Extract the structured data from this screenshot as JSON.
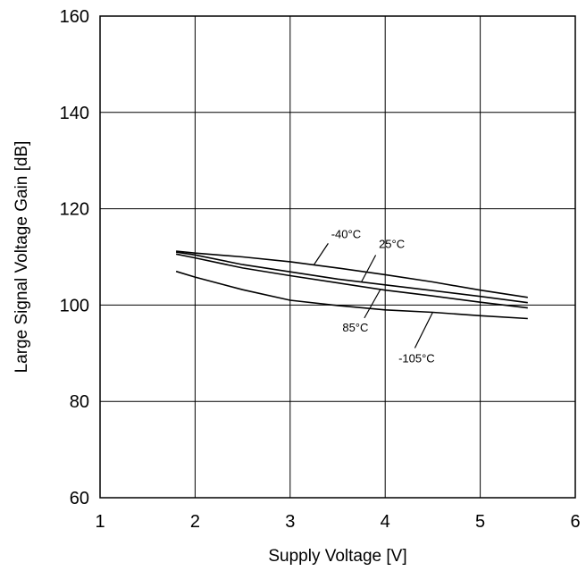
{
  "chart_data": {
    "type": "line",
    "title": "",
    "xlabel": "Supply Voltage [V]",
    "ylabel": "Large Signal Voltage Gain [dB]",
    "xlim": [
      1,
      6
    ],
    "ylim": [
      60,
      160
    ],
    "x_ticks": [
      "1",
      "2",
      "3",
      "4",
      "5",
      "6"
    ],
    "y_ticks": [
      "60",
      "80",
      "100",
      "120",
      "140",
      "160"
    ],
    "grid": true,
    "series": [
      {
        "name": "-40°C",
        "x": [
          1.8,
          2.0,
          2.5,
          3.0,
          3.5,
          4.0,
          4.5,
          5.0,
          5.5
        ],
        "y": [
          111.2,
          110.8,
          110.0,
          109.0,
          107.7,
          106.3,
          104.8,
          103.1,
          101.6
        ]
      },
      {
        "name": "25°C",
        "x": [
          1.8,
          2.0,
          2.5,
          3.0,
          3.5,
          4.0,
          4.5,
          5.0,
          5.5
        ],
        "y": [
          111.0,
          110.4,
          108.4,
          106.9,
          105.4,
          104.2,
          103.0,
          101.8,
          100.5
        ]
      },
      {
        "name": "85°C",
        "x": [
          1.8,
          2.0,
          2.5,
          3.0,
          3.5,
          4.0,
          4.5,
          5.0,
          5.5
        ],
        "y": [
          110.6,
          109.8,
          107.7,
          106.1,
          104.6,
          103.1,
          101.9,
          100.6,
          99.4
        ]
      },
      {
        "name": "-105°C",
        "x": [
          1.8,
          2.0,
          2.5,
          3.0,
          3.5,
          4.0,
          4.5,
          5.0,
          5.5
        ],
        "y": [
          107.0,
          105.8,
          103.2,
          101.0,
          99.9,
          99.0,
          98.5,
          97.8,
          97.2
        ]
      }
    ],
    "annotations": [
      {
        "text": "-40°C",
        "series": "-40°C",
        "at_x": 3.25
      },
      {
        "text": "25°C",
        "series": "25°C",
        "at_x": 3.75
      },
      {
        "text": "85°C",
        "series": "85°C",
        "at_x": 3.95
      },
      {
        "text": "-105°C",
        "series": "-105°C",
        "at_x": 4.5
      }
    ]
  }
}
